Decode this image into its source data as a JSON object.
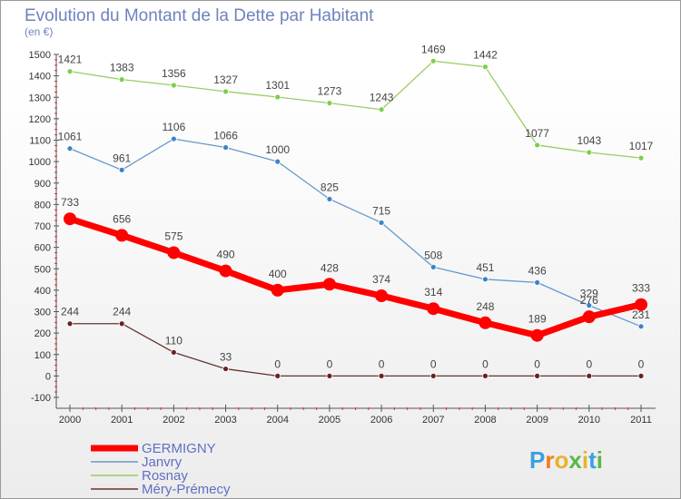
{
  "chart_data": {
    "type": "line",
    "title": "Evolution du Montant de la Dette par Habitant",
    "subtitle": "(en €)",
    "xlabel": "",
    "ylabel": "",
    "ylim": [
      -100,
      1500
    ],
    "yticks": [
      -100,
      0,
      100,
      200,
      300,
      400,
      500,
      600,
      700,
      800,
      900,
      1000,
      1100,
      1200,
      1300,
      1400,
      1500
    ],
    "x": [
      "2000",
      "2001",
      "2002",
      "2003",
      "2004",
      "2005",
      "2006",
      "2007",
      "2008",
      "2009",
      "2010",
      "2011"
    ],
    "series": [
      {
        "name": "GERMIGNY",
        "color": "#ff0000",
        "values": [
          733,
          656,
          575,
          490,
          400,
          428,
          374,
          314,
          248,
          189,
          276,
          333
        ]
      },
      {
        "name": "Janvry",
        "color": "#6699cc",
        "values": [
          1061,
          961,
          1106,
          1066,
          1000,
          825,
          715,
          508,
          451,
          436,
          329,
          231
        ]
      },
      {
        "name": "Rosnay",
        "color": "#99cc66",
        "values": [
          1421,
          1383,
          1356,
          1327,
          1301,
          1273,
          1243,
          1469,
          1442,
          1077,
          1043,
          1017
        ]
      },
      {
        "name": "Méry-Prémecy",
        "color": "#663333",
        "values": [
          244,
          244,
          110,
          33,
          0,
          0,
          0,
          0,
          0,
          0,
          0,
          0
        ]
      }
    ],
    "grid": false,
    "legend": "bottom-left"
  },
  "brand": {
    "text": "Proxiti"
  }
}
